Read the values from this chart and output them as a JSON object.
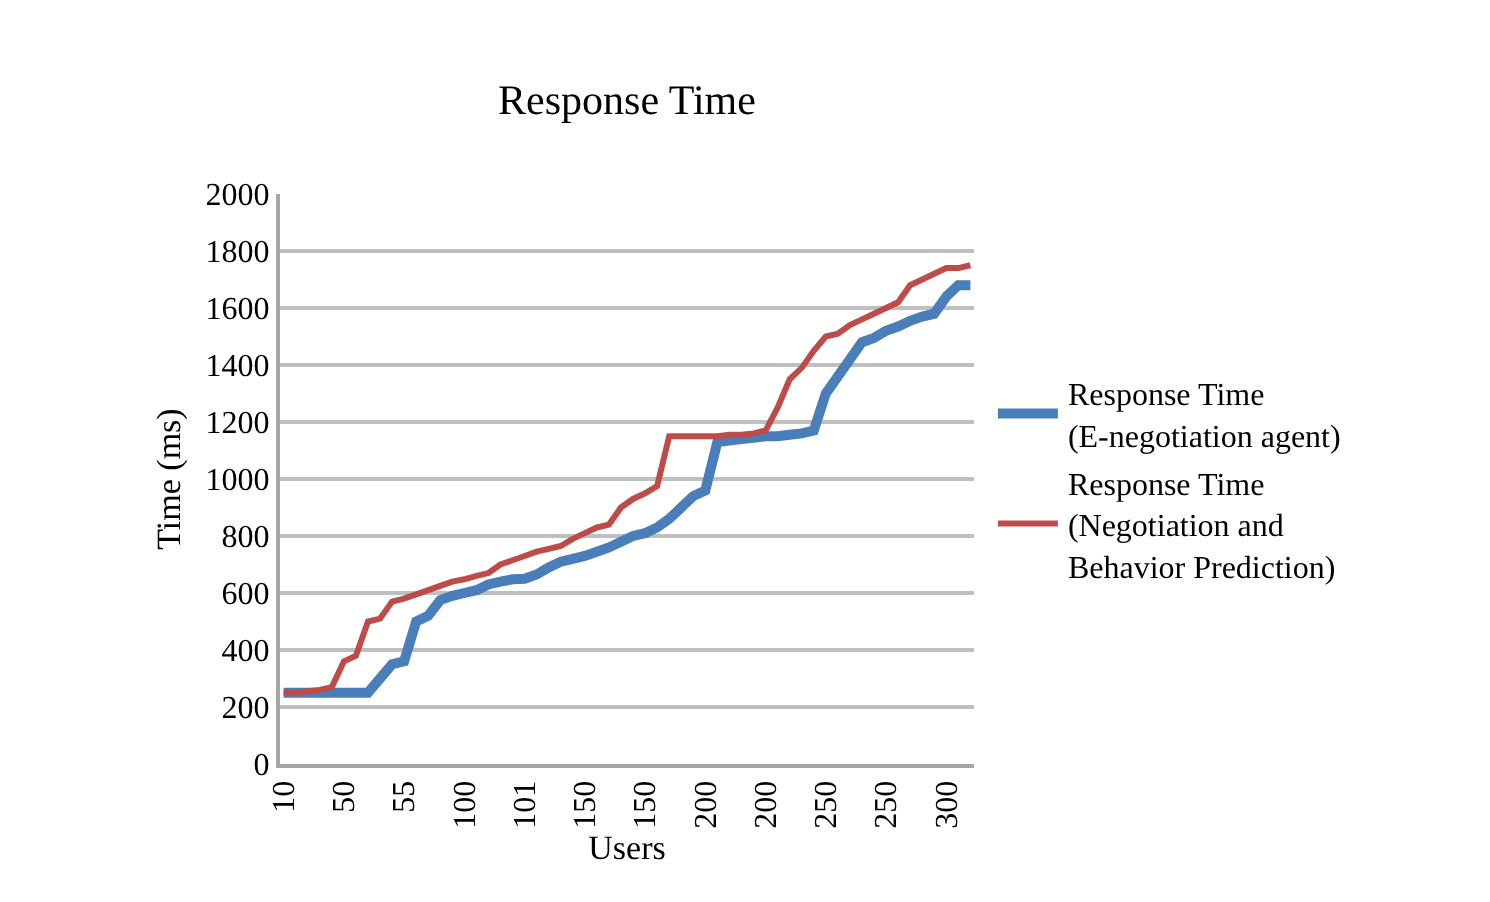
{
  "chart_data": {
    "type": "line",
    "title": "Response Time",
    "xlabel": "Users",
    "ylabel": "Time (ms)",
    "categories": [
      "10",
      null,
      null,
      null,
      null,
      "50",
      null,
      null,
      null,
      null,
      "55",
      null,
      null,
      null,
      null,
      "100",
      null,
      null,
      null,
      null,
      "101",
      null,
      null,
      null,
      null,
      "150",
      null,
      null,
      null,
      null,
      "150",
      null,
      null,
      null,
      null,
      "200",
      null,
      null,
      null,
      null,
      "200",
      null,
      null,
      null,
      null,
      "250",
      null,
      null,
      null,
      null,
      "250",
      null,
      null,
      null,
      null,
      "300",
      null,
      null
    ],
    "series": [
      {
        "name": "Response Time (E-negotiation agent)",
        "color": "#4a7ebb",
        "values": [
          250,
          250,
          250,
          250,
          250,
          250,
          250,
          250,
          300,
          350,
          360,
          500,
          520,
          575,
          590,
          600,
          610,
          630,
          640,
          648,
          650,
          665,
          690,
          710,
          720,
          730,
          745,
          760,
          780,
          800,
          810,
          830,
          860,
          900,
          940,
          960,
          1130,
          1135,
          1140,
          1145,
          1150,
          1150,
          1155,
          1160,
          1170,
          1300,
          1360,
          1420,
          1480,
          1495,
          1520,
          1535,
          1555,
          1570,
          1580,
          1640,
          1680,
          1680
        ]
      },
      {
        "name": "Response Time (Negotiation and Behavior Prediction)",
        "color": "#be4b48",
        "values": [
          250,
          250,
          255,
          260,
          270,
          360,
          380,
          500,
          510,
          570,
          580,
          595,
          610,
          625,
          640,
          648,
          660,
          670,
          700,
          715,
          730,
          745,
          755,
          765,
          790,
          810,
          830,
          840,
          900,
          930,
          950,
          975,
          1150,
          1150,
          1150,
          1150,
          1150,
          1155,
          1155,
          1160,
          1170,
          1250,
          1350,
          1390,
          1450,
          1500,
          1510,
          1540,
          1560,
          1580,
          1600,
          1620,
          1680,
          1700,
          1720,
          1740,
          1740,
          1750
        ]
      }
    ],
    "ylim": [
      0,
      2000
    ],
    "yticks": [
      0,
      200,
      400,
      600,
      800,
      1000,
      1200,
      1400,
      1600,
      1800,
      2000
    ],
    "grid": "y",
    "legend": "right",
    "marker": "none",
    "line_style": "solid"
  }
}
